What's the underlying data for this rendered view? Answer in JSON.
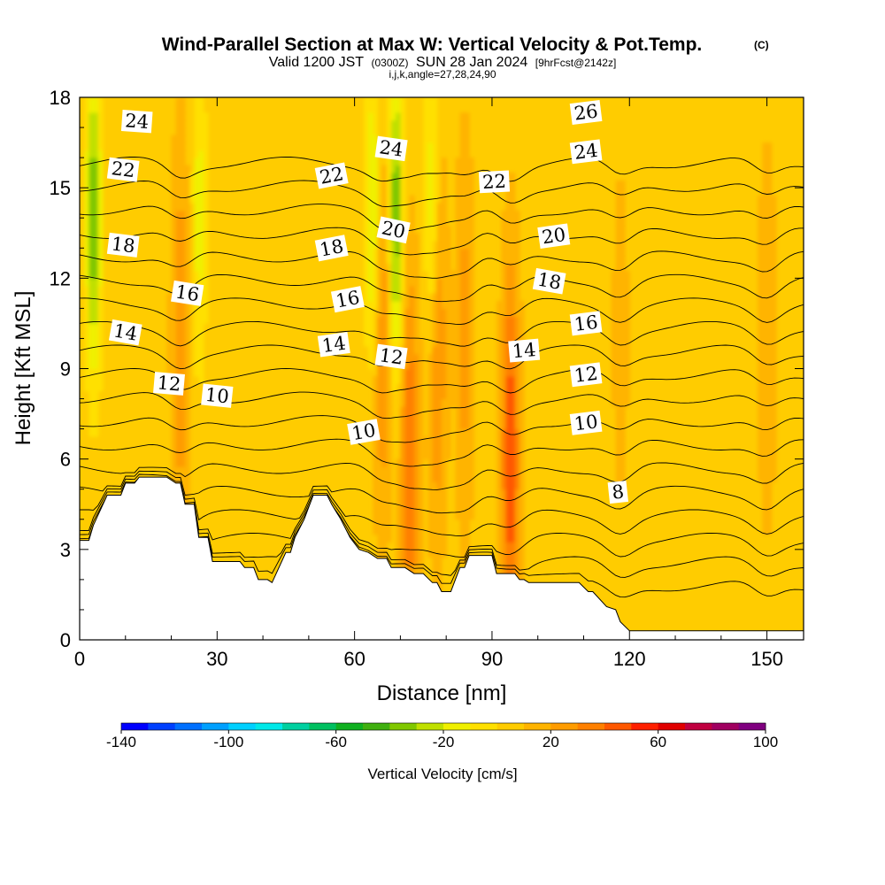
{
  "chart_data": {
    "type": "heatmap",
    "title": "Wind-Parallel Section at Max W: Vertical Velocity & Pot.Temp.",
    "title_mark": "(C)",
    "subtitle": {
      "valid_prefix": "Valid 1200 JST",
      "utc": "(0300Z)",
      "date": "SUN 28 Jan 2024",
      "forecast": "[9hrFcst@2142z]",
      "indices": "i,j,k,angle=27,28,24,90"
    },
    "xlabel": "Distance [nm]",
    "ylabel": "Height [Kft MSL]",
    "xlim": [
      0,
      158
    ],
    "ylim": [
      0,
      18
    ],
    "x_ticks": [
      0,
      30,
      60,
      90,
      120,
      150
    ],
    "y_ticks": [
      0,
      3,
      6,
      9,
      12,
      15,
      18
    ],
    "field": "Vertical Velocity [cm/s]",
    "colorbar": {
      "label": "Vertical Velocity [cm/s]",
      "min": -140,
      "max": 100,
      "step": 10,
      "tick_labels": [
        -140,
        -100,
        -60,
        -20,
        20,
        60,
        100
      ],
      "colors": [
        "#0000ff",
        "#0040ff",
        "#0070ff",
        "#00a0ff",
        "#00d0ff",
        "#00e8e8",
        "#00d0a0",
        "#00c060",
        "#10b020",
        "#40b010",
        "#80c800",
        "#c0e000",
        "#f0f000",
        "#ffe000",
        "#ffcc00",
        "#ffb400",
        "#ff9c00",
        "#ff8000",
        "#ff5800",
        "#ff2000",
        "#e00000",
        "#c00040",
        "#a00060",
        "#800080"
      ]
    },
    "updraft_columns": [
      {
        "x": 22,
        "w_max": 30
      },
      {
        "x": 66,
        "w_max": 30
      },
      {
        "x": 72,
        "w_max": 40
      },
      {
        "x": 78,
        "w_max": 35
      },
      {
        "x": 84,
        "w_max": 25
      },
      {
        "x": 94,
        "w_max": 50
      },
      {
        "x": 118,
        "w_max": 15
      },
      {
        "x": 150,
        "w_max": 20
      }
    ],
    "downdraft_columns": [
      {
        "x": 3,
        "w_min": -40
      },
      {
        "x": 26,
        "w_min": -15
      },
      {
        "x": 64,
        "w_min": -25
      },
      {
        "x": 69,
        "w_min": -40
      },
      {
        "x": 77,
        "w_min": -25
      }
    ],
    "terrain": {
      "x": [
        0,
        2,
        3,
        6,
        9,
        10,
        12,
        13,
        14,
        16,
        19,
        21,
        22,
        23,
        25,
        26,
        28,
        29,
        30,
        31,
        35,
        36,
        38,
        39,
        41,
        42,
        45,
        46,
        47,
        49,
        51,
        54,
        55,
        57,
        59,
        61,
        63,
        65,
        67,
        68,
        71,
        73,
        75,
        77,
        78,
        79,
        80,
        81,
        83,
        84,
        85,
        87,
        88,
        90,
        91,
        95,
        96,
        97,
        98,
        101,
        109,
        111,
        112,
        115,
        117,
        118,
        120,
        158
      ],
      "height": [
        3.3,
        3.3,
        3.8,
        4.8,
        4.8,
        5.2,
        5.2,
        5.4,
        5.4,
        5.4,
        5.4,
        5.2,
        5.2,
        4.5,
        4.5,
        3.4,
        3.4,
        2.6,
        2.6,
        2.6,
        2.6,
        2.4,
        2.4,
        2.0,
        2.0,
        1.9,
        2.9,
        2.9,
        3.4,
        4.0,
        4.8,
        4.8,
        4.5,
        4.0,
        3.4,
        3.0,
        2.9,
        2.7,
        2.7,
        2.4,
        2.4,
        2.2,
        2.2,
        1.9,
        1.9,
        1.6,
        1.6,
        1.6,
        2.4,
        2.4,
        2.8,
        2.8,
        2.8,
        2.8,
        2.2,
        2.2,
        2.0,
        2.0,
        1.9,
        1.9,
        1.9,
        1.6,
        1.6,
        1.1,
        1.0,
        0.6,
        0.3,
        0.3
      ]
    },
    "pot_temp_contours": {
      "units": "C",
      "levels": [
        8,
        9,
        10,
        11,
        12,
        13,
        14,
        15,
        16,
        17,
        18,
        19,
        20,
        21,
        22,
        23,
        24,
        25,
        26
      ],
      "labels": [
        {
          "value": 24,
          "x": 12.5,
          "y": 17.2
        },
        {
          "value": 22,
          "x": 9.5,
          "y": 15.6
        },
        {
          "value": 18,
          "x": 9.5,
          "y": 13.1
        },
        {
          "value": 16,
          "x": 23.5,
          "y": 11.5
        },
        {
          "value": 14,
          "x": 10,
          "y": 10.2
        },
        {
          "value": 12,
          "x": 19.5,
          "y": 8.5
        },
        {
          "value": 10,
          "x": 30,
          "y": 8.1
        },
        {
          "value": 24,
          "x": 68,
          "y": 16.3
        },
        {
          "value": 22,
          "x": 55,
          "y": 15.4
        },
        {
          "value": 20,
          "x": 68.5,
          "y": 13.6
        },
        {
          "value": 18,
          "x": 55,
          "y": 13.0
        },
        {
          "value": 16,
          "x": 58.5,
          "y": 11.3
        },
        {
          "value": 14,
          "x": 55.5,
          "y": 9.8
        },
        {
          "value": 12,
          "x": 68,
          "y": 9.4
        },
        {
          "value": 10,
          "x": 62,
          "y": 6.9
        },
        {
          "value": 22,
          "x": 90.5,
          "y": 15.2
        },
        {
          "value": 26,
          "x": 110.5,
          "y": 17.5
        },
        {
          "value": 24,
          "x": 110.5,
          "y": 16.2
        },
        {
          "value": 20,
          "x": 103.5,
          "y": 13.4
        },
        {
          "value": 18,
          "x": 102.5,
          "y": 11.9
        },
        {
          "value": 16,
          "x": 110.5,
          "y": 10.5
        },
        {
          "value": 14,
          "x": 97,
          "y": 9.6
        },
        {
          "value": 12,
          "x": 110.5,
          "y": 8.8
        },
        {
          "value": 10,
          "x": 110.5,
          "y": 7.2
        },
        {
          "value": 8,
          "x": 117.5,
          "y": 4.9
        }
      ]
    }
  }
}
